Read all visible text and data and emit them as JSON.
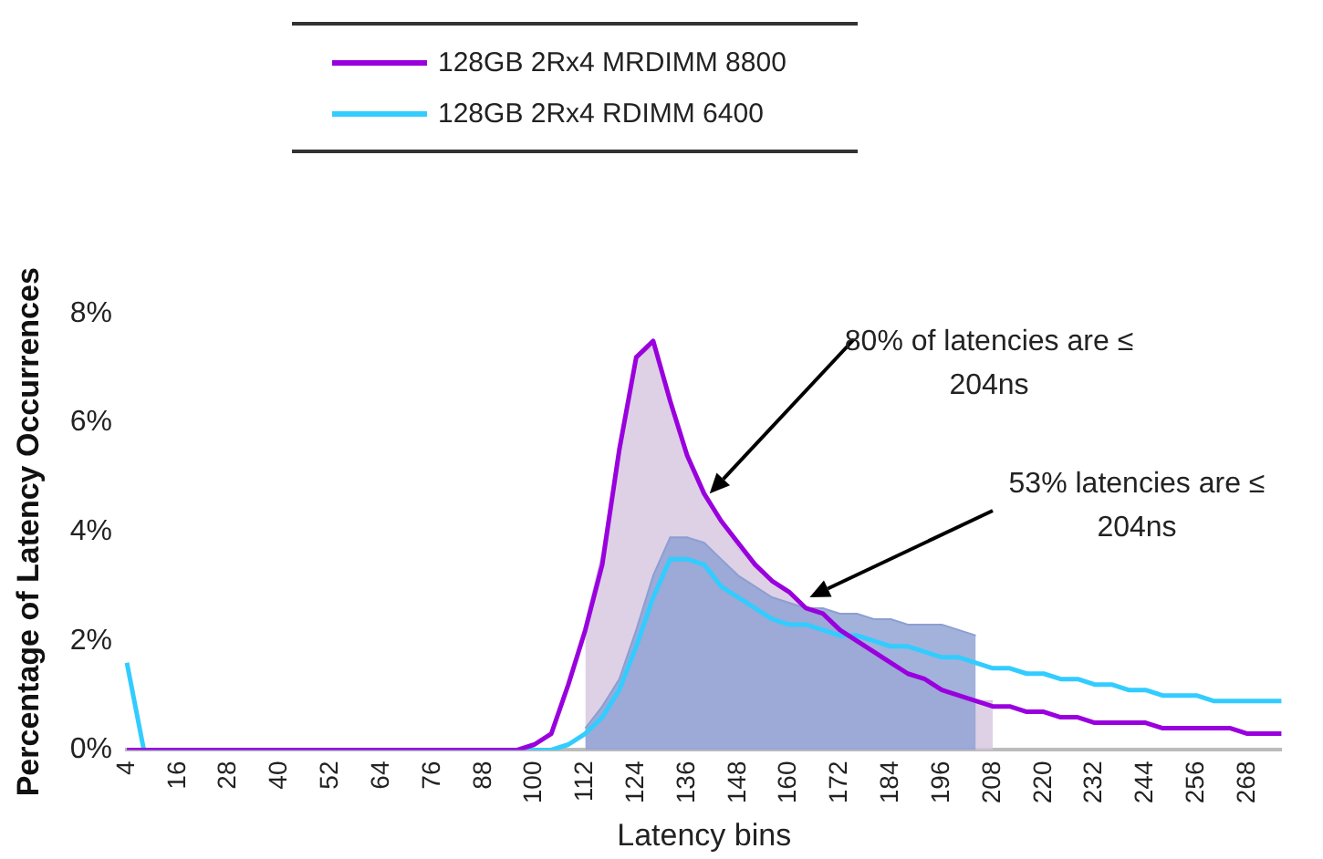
{
  "chart_data": {
    "type": "line",
    "xlabel": "Latency bins",
    "ylabel": "Percentage of Latency Occurrences",
    "categories": [
      "4",
      null,
      null,
      "16",
      null,
      null,
      "28",
      null,
      null,
      "40",
      null,
      null,
      "52",
      null,
      null,
      "64",
      null,
      null,
      "76",
      null,
      null,
      "88",
      null,
      null,
      "100",
      null,
      null,
      "112",
      null,
      null,
      "124",
      null,
      null,
      "136",
      null,
      null,
      "148",
      null,
      null,
      "160",
      null,
      null,
      "172",
      null,
      null,
      "184",
      null,
      null,
      "196",
      null,
      null,
      "208",
      null,
      null,
      "220",
      null,
      null,
      "232",
      null,
      null,
      "244",
      null,
      null,
      "256",
      null,
      null,
      "268",
      null,
      null
    ],
    "series": [
      {
        "type": "area",
        "color": "#d6c6e0",
        "values": [
          null,
          null,
          null,
          null,
          null,
          null,
          null,
          null,
          null,
          null,
          null,
          null,
          null,
          null,
          null,
          null,
          null,
          null,
          null,
          null,
          null,
          null,
          null,
          null,
          null,
          null,
          null,
          2.3,
          3.6,
          5.6,
          7.2,
          7.4,
          6.4,
          5.4,
          4.7,
          4.2,
          3.7,
          3.4,
          3.1,
          2.9,
          2.6,
          2.5,
          2.2,
          2.0,
          1.8,
          1.6,
          1.4,
          1.3,
          1.1,
          1.0,
          0.9,
          0.9,
          null,
          null,
          null,
          null,
          null,
          null,
          null,
          null,
          null,
          null,
          null,
          null,
          null,
          null,
          null,
          null,
          null
        ]
      },
      {
        "type": "area",
        "color": "#8c9fd2",
        "values": [
          null,
          null,
          null,
          null,
          null,
          null,
          null,
          null,
          null,
          null,
          null,
          null,
          null,
          null,
          null,
          null,
          null,
          null,
          null,
          null,
          null,
          null,
          null,
          null,
          null,
          null,
          null,
          0.4,
          0.8,
          1.3,
          2.2,
          3.2,
          3.9,
          3.9,
          3.8,
          3.5,
          3.2,
          3.0,
          2.8,
          2.7,
          2.6,
          2.6,
          2.5,
          2.5,
          2.4,
          2.4,
          2.3,
          2.3,
          2.3,
          2.2,
          2.1,
          null,
          null,
          null,
          null,
          null,
          null,
          null,
          null,
          null,
          null,
          null,
          null,
          null,
          null,
          null,
          null,
          null,
          null
        ]
      },
      {
        "name": "128GB 2Rx4 MRDIMM 8800",
        "color": "#9900dd",
        "values": [
          0,
          0,
          0,
          0,
          0,
          0,
          0,
          0,
          0,
          0,
          0,
          0,
          0,
          0,
          0,
          0,
          0,
          0,
          0,
          0,
          0,
          0,
          0,
          0,
          0.1,
          0.3,
          1.2,
          2.2,
          3.4,
          5.5,
          7.2,
          7.5,
          6.4,
          5.4,
          4.7,
          4.2,
          3.8,
          3.4,
          3.1,
          2.9,
          2.6,
          2.5,
          2.2,
          2.0,
          1.8,
          1.6,
          1.4,
          1.3,
          1.1,
          1.0,
          0.9,
          0.8,
          0.8,
          0.7,
          0.7,
          0.6,
          0.6,
          0.5,
          0.5,
          0.5,
          0.5,
          0.4,
          0.4,
          0.4,
          0.4,
          0.4,
          0.3,
          0.3,
          0.3
        ]
      },
      {
        "name": "128GB 2Rx4 RDIMM 6400",
        "color": "#33ccff",
        "values": [
          1.6,
          0,
          0,
          0,
          0,
          0,
          0,
          0,
          0,
          0,
          0,
          0,
          0,
          0,
          0,
          0,
          0,
          0,
          0,
          0,
          0,
          0,
          0,
          0,
          0,
          0,
          0.1,
          0.3,
          0.6,
          1.1,
          1.9,
          2.8,
          3.5,
          3.5,
          3.4,
          3.0,
          2.8,
          2.6,
          2.4,
          2.3,
          2.3,
          2.2,
          2.1,
          2.1,
          2.0,
          1.9,
          1.9,
          1.8,
          1.7,
          1.7,
          1.6,
          1.5,
          1.5,
          1.4,
          1.4,
          1.3,
          1.3,
          1.2,
          1.2,
          1.1,
          1.1,
          1.0,
          1.0,
          1.0,
          0.9,
          0.9,
          0.9,
          0.9,
          0.9
        ]
      }
    ],
    "ylim": [
      0,
      8
    ],
    "yticks": [
      {
        "value": 0,
        "label": "0%"
      },
      {
        "value": 2,
        "label": "2%"
      },
      {
        "value": 4,
        "label": "4%"
      },
      {
        "value": 6,
        "label": "6%"
      },
      {
        "value": 8,
        "label": "8%"
      }
    ],
    "grid": false,
    "legend": "top",
    "marker": "none",
    "annotations": [
      "80% of latencies are ≤ 204ns",
      "53% latencies are ≤ 204ns"
    ]
  }
}
